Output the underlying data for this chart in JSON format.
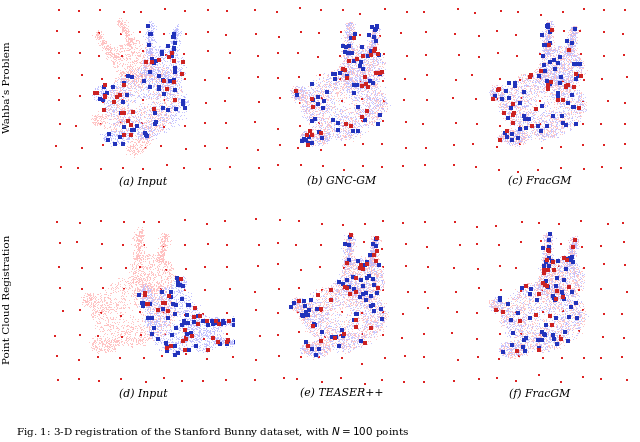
{
  "title": "Fig. 1: 3-D registration of the Stanford Bunny dataset, with $N = 100$ points",
  "row_labels": [
    "Wahba’s Problem",
    "Point Cloud Registration"
  ],
  "col_labels": [
    "(a) Input",
    "(b) GNC-GM",
    "(c) FracGM",
    "(d) Input",
    "(e) TEASER++",
    "(f) FracGM"
  ],
  "bg_color": "#ffffff",
  "light_red": "#ffcccc",
  "light_blue": "#ccccff",
  "blue_sq": "#2233bb",
  "red_sq": "#cc2222",
  "outlier_red": "#dd2222"
}
